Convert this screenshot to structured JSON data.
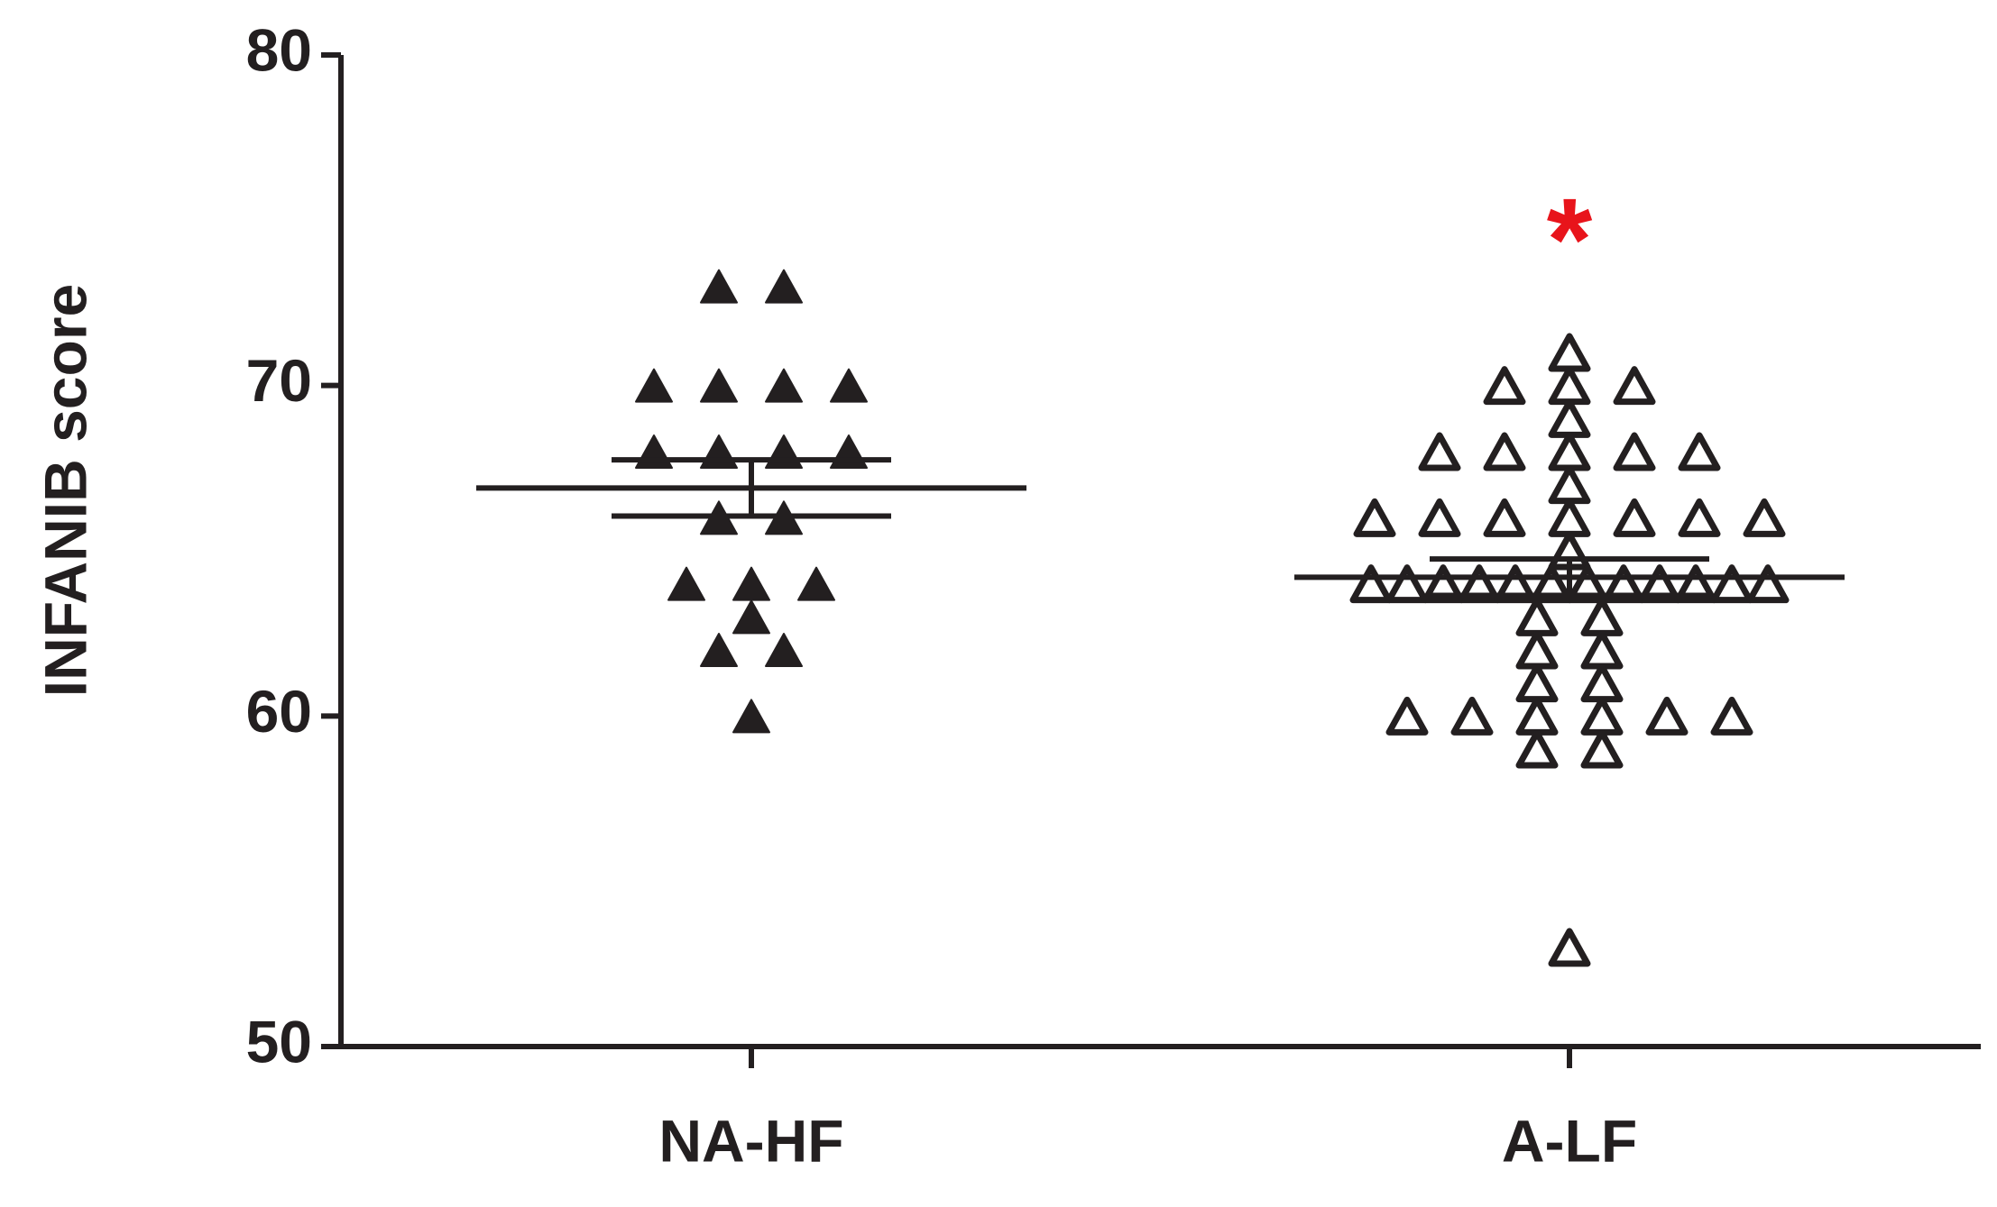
{
  "chart_data": {
    "type": "strip",
    "y_label": "INFANIB score",
    "categories": [
      "NA-HF",
      "A-LF"
    ],
    "groups": [
      {
        "values": [
          73,
          73,
          70,
          70,
          70,
          70,
          68,
          68,
          68,
          68,
          66,
          66,
          64,
          64,
          64,
          63,
          62,
          62,
          60
        ],
        "mean": 66.9,
        "sem": 0.85,
        "filled": true
      },
      {
        "values": [
          71,
          70,
          70,
          70,
          69,
          68,
          68,
          68,
          68,
          68,
          67,
          66,
          66,
          66,
          66,
          66,
          66,
          66,
          65,
          64,
          64,
          64,
          64,
          64,
          64,
          64,
          64,
          64,
          64,
          64,
          64,
          63,
          63,
          62,
          62,
          61,
          61,
          60,
          60,
          60,
          60,
          60,
          60,
          59,
          59,
          53
        ],
        "mean": 64.2,
        "sem": 0.55,
        "filled": false
      }
    ],
    "color": "#231f20",
    "annotations": [
      {
        "text": "*",
        "group": 1,
        "color": "#e8141b"
      }
    ],
    "ylim": [
      50,
      80
    ],
    "yticks": [
      50,
      60,
      70,
      80
    ]
  }
}
